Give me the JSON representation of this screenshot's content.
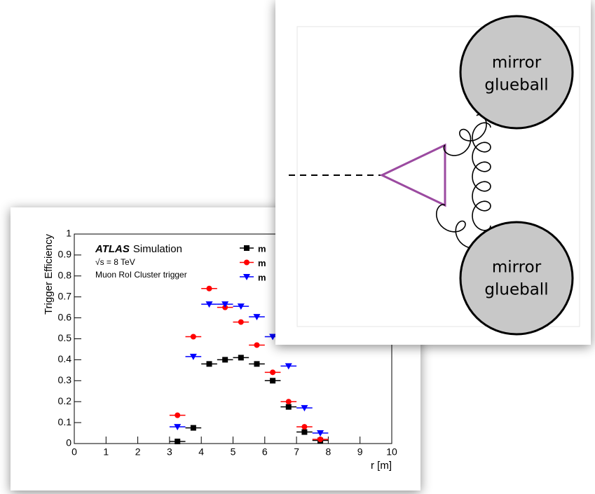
{
  "chart_data": {
    "type": "scatter",
    "x_label": "r [m]",
    "y_label": "Trigger Efficiency",
    "annotations": [
      "ATLAS",
      "Simulation",
      "√s = 8 TeV",
      "Muon RoI Cluster trigger"
    ],
    "x": [
      3.25,
      3.75,
      4.25,
      4.75,
      5.25,
      5.75,
      6.25,
      6.75,
      7.25,
      7.75
    ],
    "x_error": 0.25,
    "series": [
      {
        "name": "m",
        "color": "#000000",
        "marker": "square",
        "values": [
          0.01,
          0.075,
          0.38,
          0.4,
          0.41,
          0.38,
          0.3,
          0.175,
          0.055,
          0.015
        ]
      },
      {
        "name": "m",
        "color": "#ff0000",
        "marker": "circle",
        "values": [
          0.135,
          0.51,
          0.74,
          0.65,
          0.58,
          0.47,
          0.34,
          0.2,
          0.08,
          0.02
        ]
      },
      {
        "name": "m",
        "color": "#0000ff",
        "marker": "triangle-down",
        "values": [
          0.08,
          0.415,
          0.665,
          0.665,
          0.655,
          0.605,
          0.51,
          0.37,
          0.17,
          0.05
        ]
      }
    ],
    "xlim": [
      0,
      10
    ],
    "xticks": [
      0,
      1,
      2,
      3,
      4,
      5,
      6,
      7,
      8,
      9,
      10
    ],
    "ylim": [
      0,
      1
    ],
    "yticks": [
      0,
      0.1,
      0.2,
      0.3,
      0.4,
      0.5,
      0.6,
      0.7,
      0.8,
      0.9,
      1
    ]
  },
  "diagram": {
    "nodes": [
      {
        "lines": [
          "mirror",
          "glueball"
        ]
      },
      {
        "lines": [
          "mirror",
          "glueball"
        ]
      }
    ]
  }
}
